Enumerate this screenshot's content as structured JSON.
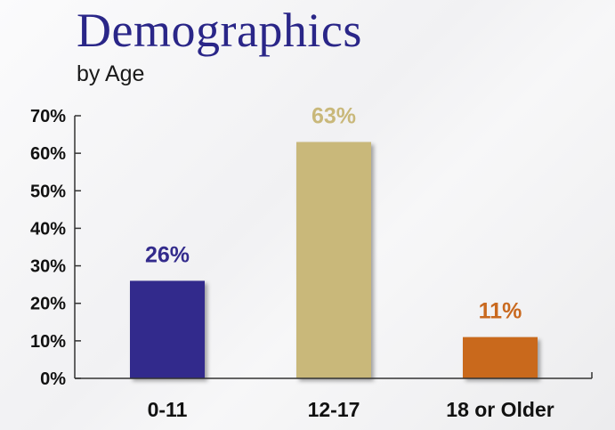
{
  "chart_data": {
    "type": "bar",
    "title": "Demographics",
    "subtitle": "by Age",
    "categories": [
      "0-11",
      "12-17",
      "18 or Older"
    ],
    "values": [
      26,
      63,
      11
    ],
    "data_labels": [
      "26%",
      "63%",
      "11%"
    ],
    "bar_colors": [
      "#332b8c",
      "#c9b87a",
      "#c9691f"
    ],
    "label_colors": [
      "#332b8c",
      "#c9b87a",
      "#c9691f"
    ],
    "ylim": [
      0,
      70
    ],
    "yticks": [
      0,
      10,
      20,
      30,
      40,
      50,
      60,
      70
    ],
    "ytick_labels": [
      "0%",
      "10%",
      "20%",
      "30%",
      "40%",
      "50%",
      "60%",
      "70%"
    ],
    "xlabel": "",
    "ylabel": "",
    "grid": false,
    "legend": "none"
  }
}
